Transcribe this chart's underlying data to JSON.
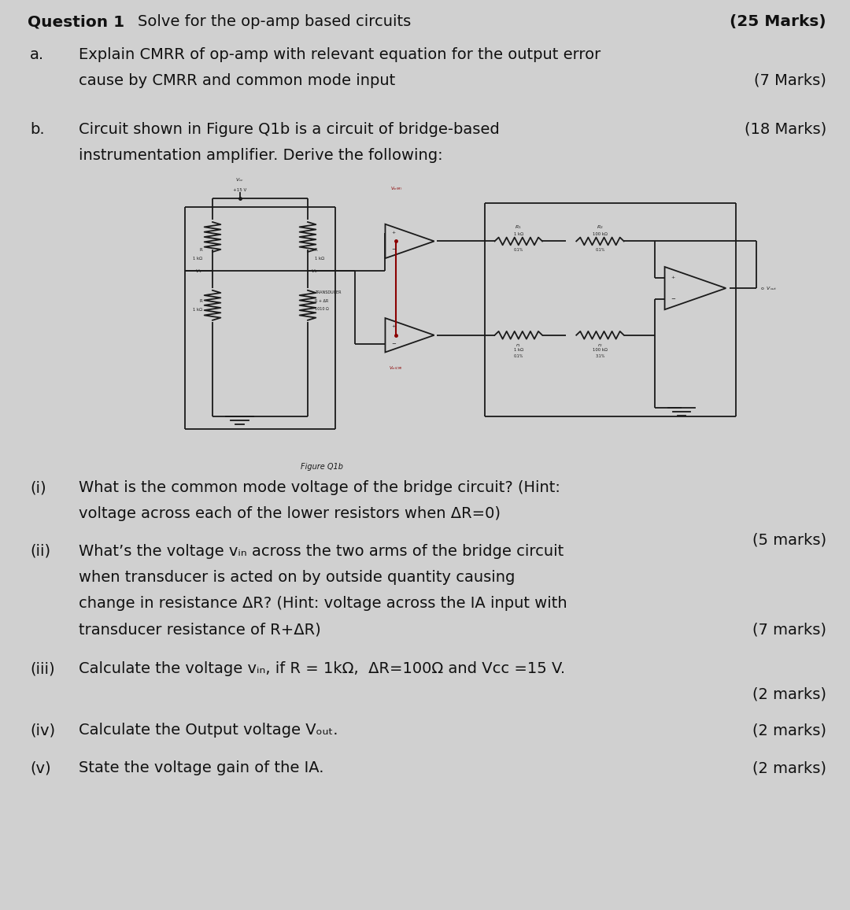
{
  "bg_color": "#d0d0d0",
  "text_color": "#111111",
  "fig_width": 10.8,
  "fig_height": 11.56,
  "title_bold": "Question 1",
  "title_normal": "   Solve for the op-amp based circuits",
  "title_right": "(25 Marks)",
  "part_a_marks": "(7 Marks)",
  "part_b_marks": "(18 Marks)",
  "figure_label": "Figure Q1b",
  "q_i_marks": "(5 marks)",
  "q_ii_marks": "(7 marks)",
  "q_iii_marks": "(2 marks)",
  "q_iv_marks": "(2 marks)",
  "q_v_marks": "(2 marks)"
}
